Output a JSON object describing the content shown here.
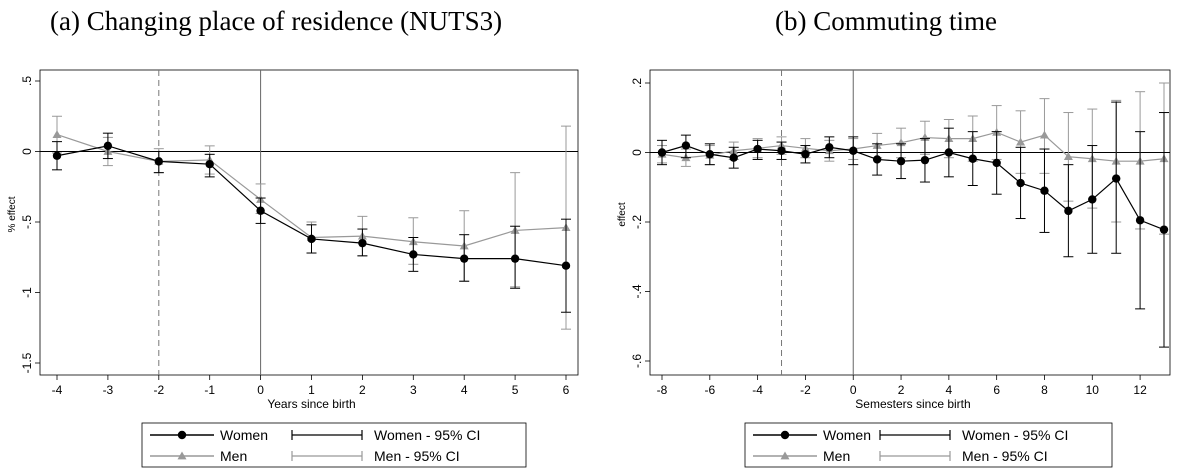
{
  "chart_data": [
    {
      "type": "line",
      "title": "(a) Changing place of residence (NUTS3)",
      "xlabel": "Years since birth",
      "ylabel": "% effect",
      "xlim": [
        -4,
        6
      ],
      "ylim": [
        -1.5,
        0.5
      ],
      "xticks": [
        -4,
        -3,
        -2,
        -1,
        0,
        1,
        2,
        3,
        4,
        5,
        6
      ],
      "xtick_labels": [
        "-4",
        "-3",
        "-2",
        "-1",
        "0",
        "1",
        "2",
        "3",
        "4",
        "5",
        "6"
      ],
      "yticks": [
        0.5,
        0,
        -0.5,
        -1,
        -1.5
      ],
      "ytick_labels": [
        ".5",
        "0",
        "-.5",
        "-1",
        "-1.5"
      ],
      "reference_lines": {
        "dashed_x": -2,
        "solid_x": 0,
        "solid_y": 0
      },
      "series": [
        {
          "name": "Women",
          "color": "#000000",
          "marker": "circle",
          "x": [
            -4,
            -3,
            -2,
            -1,
            0,
            1,
            2,
            3,
            4,
            5,
            6
          ],
          "y": [
            -0.03,
            0.04,
            -0.07,
            -0.09,
            -0.42,
            -0.62,
            -0.65,
            -0.73,
            -0.76,
            -0.76,
            -0.81
          ],
          "ci_low": [
            -0.13,
            -0.05,
            -0.15,
            -0.18,
            -0.51,
            -0.72,
            -0.74,
            -0.85,
            -0.92,
            -0.97,
            -1.14
          ],
          "ci_high": [
            0.07,
            0.13,
            0.0,
            -0.02,
            -0.33,
            -0.52,
            -0.55,
            -0.61,
            -0.59,
            -0.53,
            -0.48
          ]
        },
        {
          "name": "Men",
          "color": "#999999",
          "marker": "triangle",
          "x": [
            -4,
            -3,
            -2,
            -1,
            0,
            1,
            2,
            3,
            4,
            5,
            6
          ],
          "y": [
            0.12,
            0.0,
            -0.07,
            -0.06,
            -0.34,
            -0.61,
            -0.6,
            -0.64,
            -0.67,
            -0.56,
            -0.54
          ],
          "ci_low": [
            -0.01,
            -0.1,
            -0.15,
            -0.16,
            -0.44,
            -0.72,
            -0.74,
            -0.8,
            -0.92,
            -0.96,
            -1.26
          ],
          "ci_high": [
            0.25,
            0.1,
            0.02,
            0.04,
            -0.23,
            -0.5,
            -0.46,
            -0.47,
            -0.42,
            -0.15,
            0.18
          ]
        }
      ],
      "legend": {
        "position": "bottom",
        "entries": [
          "Women",
          "Women - 95% CI",
          "Men",
          "Men - 95% CI"
        ]
      }
    },
    {
      "type": "line",
      "title": "(b) Commuting time",
      "xlabel": "Semesters since birth",
      "ylabel": "effect",
      "xlim": [
        -8,
        13
      ],
      "ylim": [
        -0.6,
        0.2
      ],
      "xticks": [
        -8,
        -6,
        -4,
        -2,
        0,
        2,
        4,
        6,
        8,
        10,
        12
      ],
      "xtick_labels": [
        "-8",
        "-6",
        "-4",
        "-2",
        "0",
        "2",
        "4",
        "6",
        "8",
        "10",
        "12"
      ],
      "yticks": [
        0.2,
        0,
        -0.2,
        -0.4,
        -0.6
      ],
      "ytick_labels": [
        ".2",
        "0",
        "-.2",
        "-.4",
        "-.6"
      ],
      "reference_lines": {
        "dashed_x": -3,
        "solid_x": 0,
        "solid_y": 0
      },
      "series": [
        {
          "name": "Women",
          "color": "#000000",
          "marker": "circle",
          "x": [
            -8,
            -7,
            -6,
            -5,
            -4,
            -3,
            -2,
            -1,
            0,
            1,
            2,
            3,
            4,
            5,
            6,
            7,
            8,
            9,
            10,
            11,
            12,
            13
          ],
          "y": [
            0.0,
            0.02,
            -0.005,
            -0.015,
            0.01,
            0.005,
            -0.005,
            0.015,
            0.005,
            -0.02,
            -0.025,
            -0.022,
            0.0,
            -0.018,
            -0.03,
            -0.088,
            -0.11,
            -0.168,
            -0.135,
            -0.075,
            -0.195,
            -0.222
          ],
          "ci_low": [
            -0.035,
            -0.015,
            -0.035,
            -0.045,
            -0.02,
            -0.02,
            -0.03,
            -0.015,
            -0.035,
            -0.065,
            -0.075,
            -0.085,
            -0.07,
            -0.095,
            -0.12,
            -0.19,
            -0.23,
            -0.3,
            -0.29,
            -0.29,
            -0.45,
            -0.56
          ],
          "ci_high": [
            0.035,
            0.05,
            0.025,
            0.015,
            0.035,
            0.03,
            0.02,
            0.045,
            0.045,
            0.025,
            0.025,
            0.04,
            0.07,
            0.06,
            0.06,
            0.015,
            0.01,
            -0.035,
            0.02,
            0.145,
            0.06,
            0.115
          ]
        },
        {
          "name": "Men",
          "color": "#999999",
          "marker": "triangle",
          "x": [
            -8,
            -7,
            -6,
            -5,
            -4,
            -3,
            -2,
            -1,
            0,
            1,
            2,
            3,
            4,
            5,
            6,
            7,
            8,
            9,
            10,
            11,
            12,
            13
          ],
          "y": [
            -0.005,
            -0.015,
            -0.008,
            0.005,
            0.012,
            0.02,
            0.012,
            0.005,
            0.01,
            0.02,
            0.028,
            0.043,
            0.04,
            0.04,
            0.058,
            0.03,
            0.05,
            -0.012,
            -0.018,
            -0.025,
            -0.025,
            -0.018
          ],
          "ci_low": [
            -0.03,
            -0.04,
            -0.035,
            -0.02,
            -0.015,
            -0.005,
            -0.015,
            -0.025,
            -0.02,
            -0.015,
            -0.015,
            -0.005,
            -0.015,
            -0.025,
            -0.02,
            -0.06,
            -0.06,
            -0.14,
            -0.16,
            -0.2,
            -0.22,
            -0.235
          ],
          "ci_high": [
            0.02,
            0.01,
            0.02,
            0.03,
            0.04,
            0.045,
            0.04,
            0.035,
            0.04,
            0.055,
            0.07,
            0.09,
            0.095,
            0.105,
            0.135,
            0.12,
            0.155,
            0.115,
            0.125,
            0.15,
            0.175,
            0.2
          ]
        }
      ],
      "legend": {
        "position": "bottom",
        "entries": [
          "Women",
          "Women - 95% CI",
          "Men",
          "Men - 95% CI"
        ]
      }
    }
  ]
}
